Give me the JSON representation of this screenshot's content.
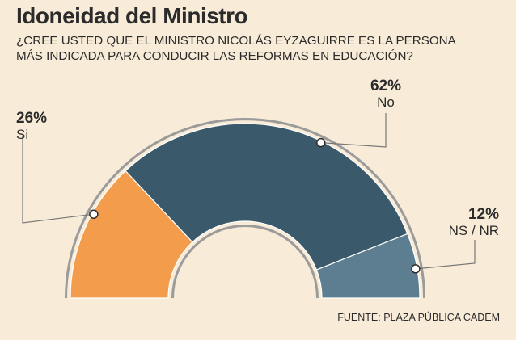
{
  "header": {
    "title": "Idoneidad del Ministro",
    "question": "¿CREE USTED QUE EL MINISTRO NICOLÁS EYZAGUIRRE ES LA PERSONA\nMÁS INDICADA PARA CONDUCIR LAS REFORMAS EN EDUCACIÓN?"
  },
  "chart_data": {
    "type": "pie",
    "variant": "half-donut",
    "slices": [
      {
        "label": "Si",
        "pct_label": "26%",
        "value": 26,
        "color": "#f39c4c"
      },
      {
        "label": "No",
        "pct_label": "62%",
        "value": 62,
        "color": "#3a5a6c"
      },
      {
        "label": "NS / NR",
        "pct_label": "12%",
        "value": 12,
        "color": "#5d7d90"
      }
    ],
    "ring_color": "#9b9b9b",
    "background_color": "#f8ecd8"
  },
  "footer": {
    "source": "FUENTE: PLAZA PÚBLICA CADEM"
  }
}
